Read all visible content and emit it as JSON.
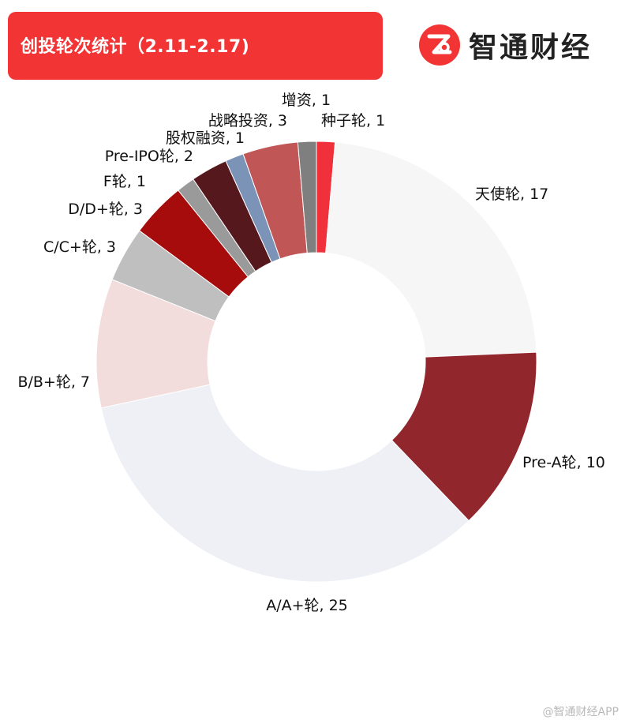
{
  "header": {
    "title": "创投轮次统计（2.11-2.17)",
    "brand_name": "智通财经",
    "brand_logo_icon": "zhitong-logo-icon",
    "brand_color": "#f23434"
  },
  "watermark": "@智通财经APP",
  "chart_data": {
    "type": "pie",
    "donut": true,
    "start": "12 o'clock",
    "direction": "clockwise",
    "title": "",
    "slices": [
      {
        "label": "种子轮, 1",
        "name": "种子轮",
        "value": 1,
        "color": "#f0303a"
      },
      {
        "label": "天使轮, 17",
        "name": "天使轮",
        "value": 17,
        "color": "#f6f6f6"
      },
      {
        "label": "Pre-A轮, 10",
        "name": "Pre-A轮",
        "value": 10,
        "color": "#92262d"
      },
      {
        "label": "A/A+轮, 25",
        "name": "A/A+轮",
        "value": 25,
        "color": "#eef0f6"
      },
      {
        "label": "B/B+轮, 7",
        "name": "B/B+轮",
        "value": 7,
        "color": "#f3dcdc"
      },
      {
        "label": "C/C+轮, 3",
        "name": "C/C+轮",
        "value": 3,
        "color": "#bfbfbf"
      },
      {
        "label": "D/D+轮, 3",
        "name": "D/D+轮",
        "value": 3,
        "color": "#a60c0c"
      },
      {
        "label": "F轮, 1",
        "name": "F轮",
        "value": 1,
        "color": "#9a9a9a"
      },
      {
        "label": "Pre-IPO轮, 2",
        "name": "Pre-IPO轮",
        "value": 2,
        "color": "#55181d"
      },
      {
        "label": "股权融资, 1",
        "name": "股权融资",
        "value": 1,
        "color": "#7b93b6"
      },
      {
        "label": "战略投资, 3",
        "name": "战略投资",
        "value": 3,
        "color": "#c05656"
      },
      {
        "label": "增资, 1",
        "name": "增资",
        "value": 1,
        "color": "#7f7f7f"
      }
    ]
  }
}
